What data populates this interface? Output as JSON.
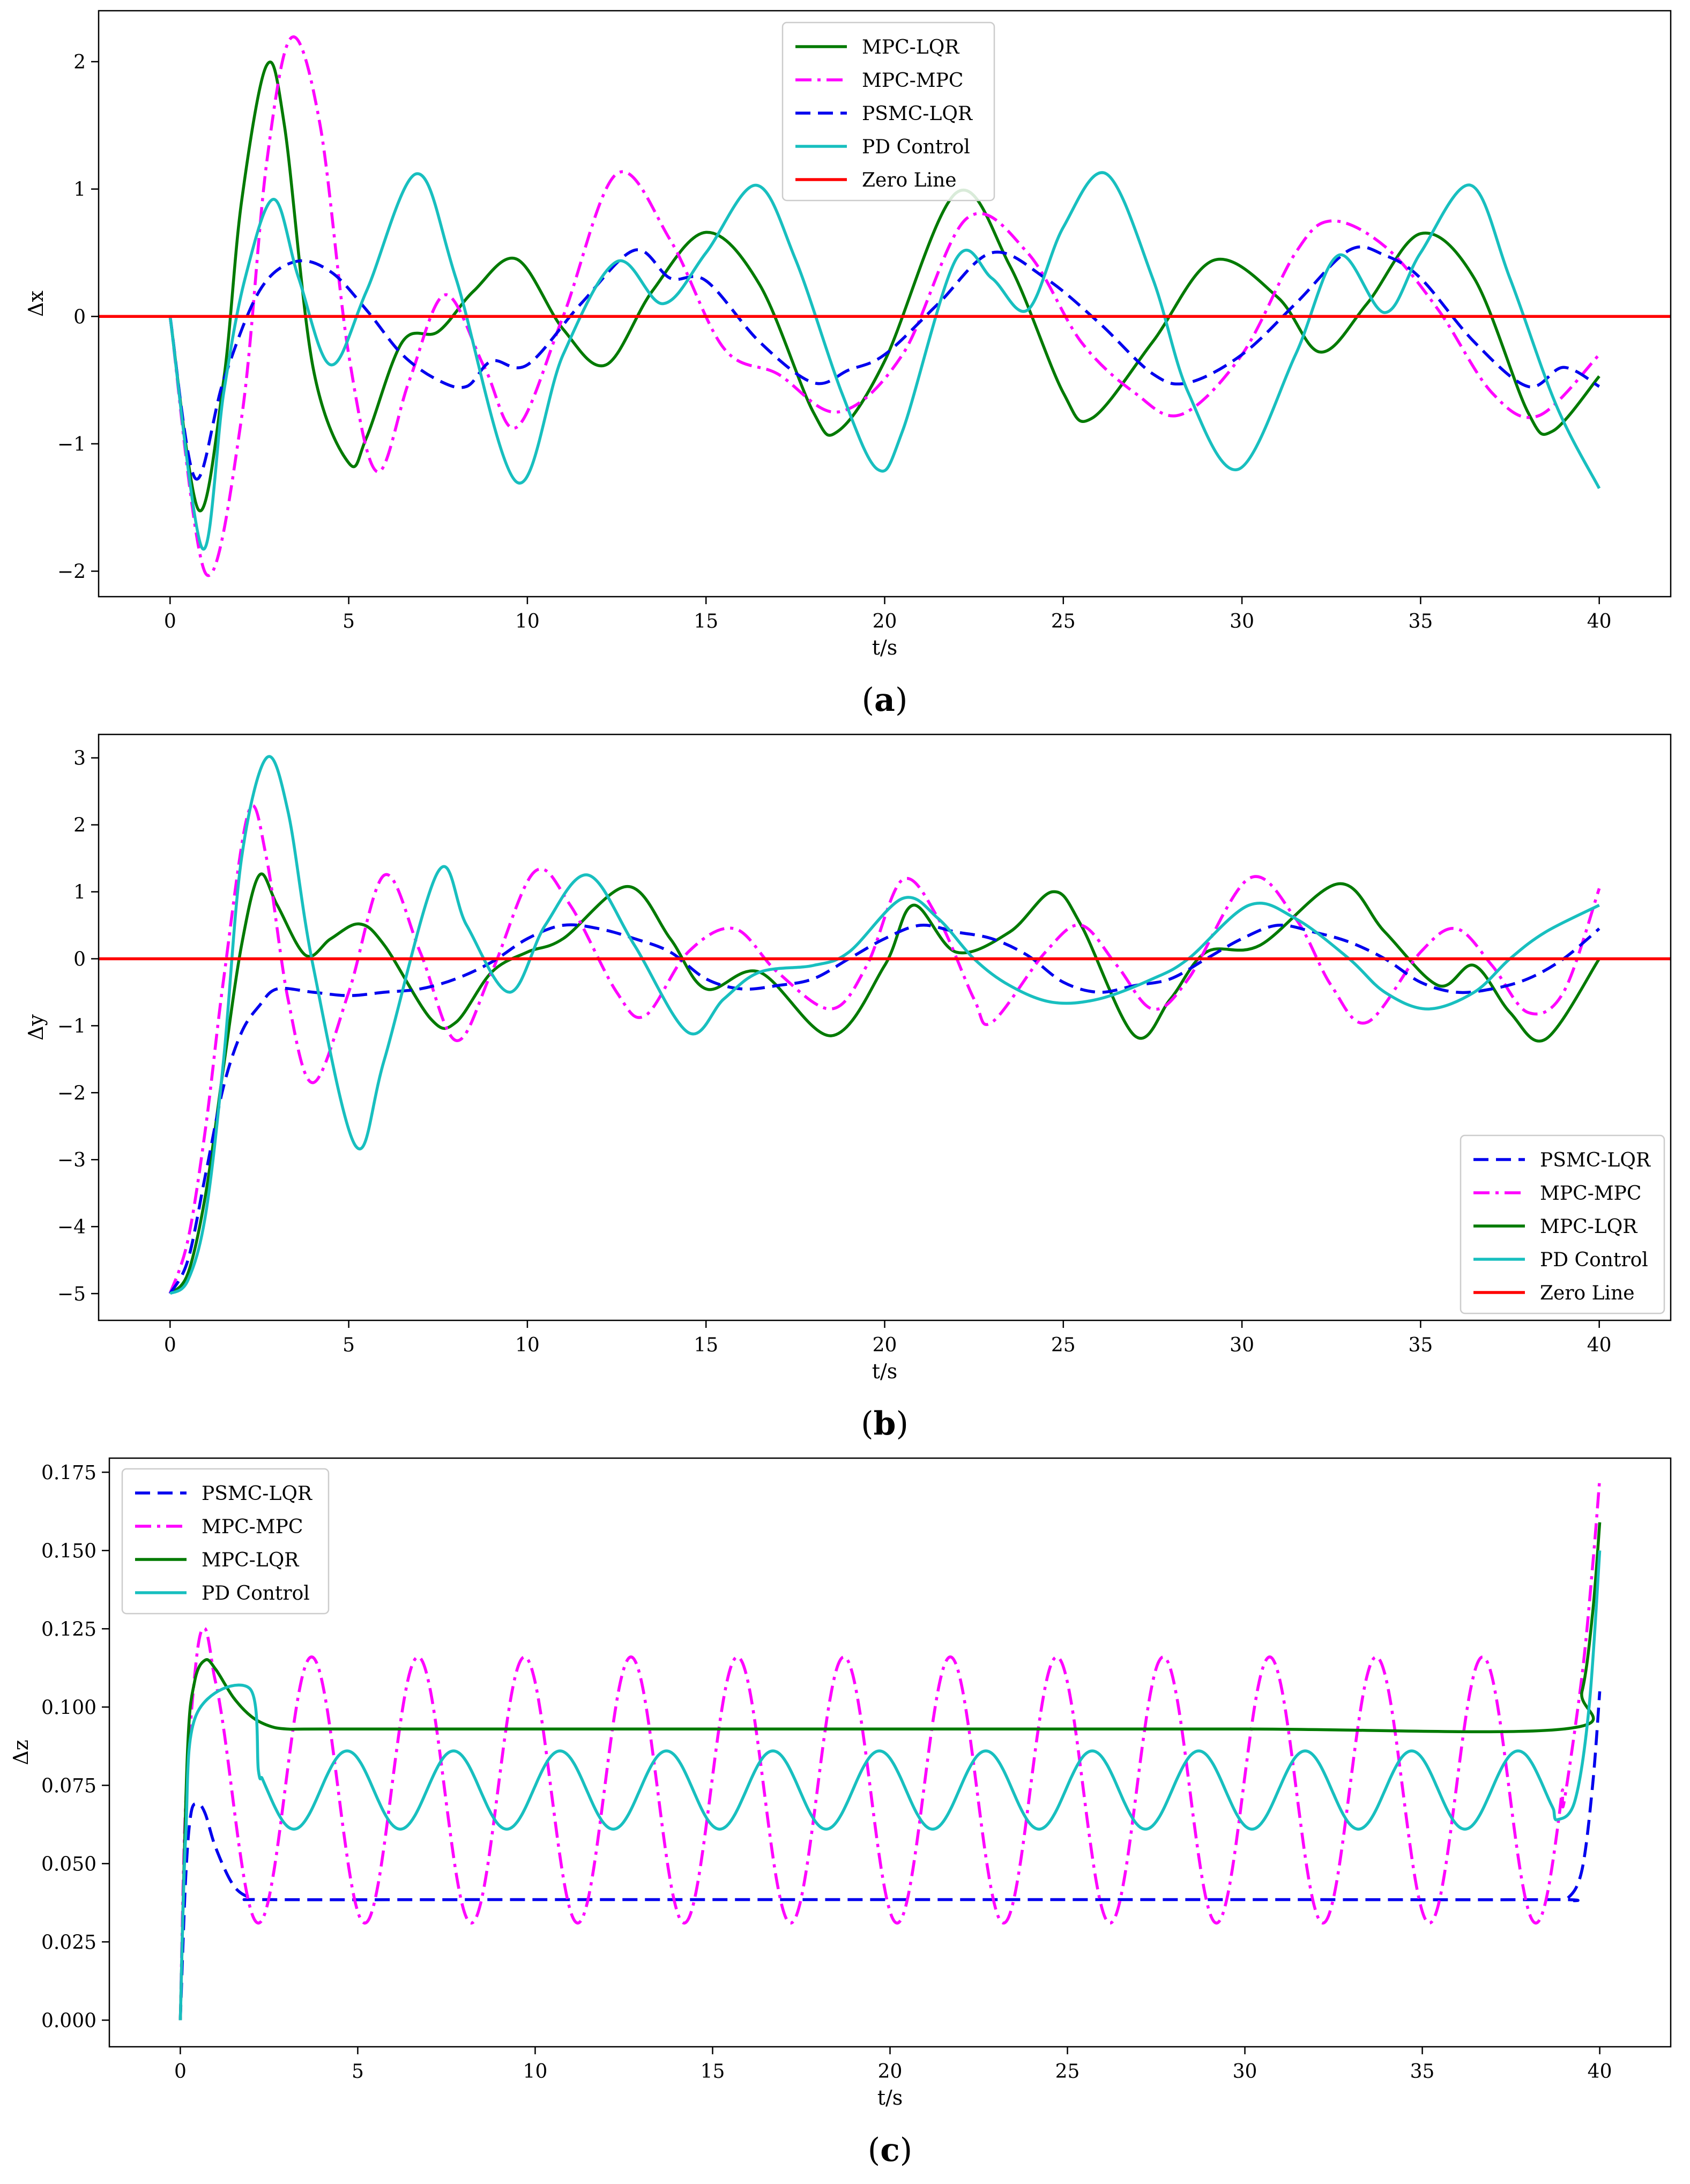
{
  "figure": {
    "colors": {
      "mpc_lqr": "#007a00",
      "mpc_mpc": "#ff00ff",
      "psmc_lqr": "#0000ee",
      "pd": "#18bfbf",
      "zero": "#ff0000",
      "axis": "#000000"
    }
  },
  "chart_data": [
    {
      "id": "a",
      "type": "line",
      "caption_letter": "a",
      "xlabel": "t/s",
      "ylabel": "Δx",
      "xlim": [
        -2,
        42
      ],
      "ylim": [
        -2.2,
        2.4
      ],
      "xticks": [
        0,
        5,
        10,
        15,
        20,
        25,
        30,
        35,
        40
      ],
      "xtick_labels": [
        "0",
        "5",
        "10",
        "15",
        "20",
        "25",
        "30",
        "35",
        "40"
      ],
      "yticks": [
        -2,
        -1,
        0,
        1,
        2
      ],
      "ytick_labels": [
        "−2",
        "−1",
        "0",
        "1",
        "2"
      ],
      "legend_position": "top-center",
      "legend_order": [
        "mpc_lqr",
        "mpc_mpc",
        "psmc_lqr",
        "pd",
        "zero"
      ],
      "series": [
        {
          "key": "mpc_lqr",
          "name": "MPC-LQR",
          "style": "solid",
          "color": "#007a00",
          "x": [
            0,
            0.8,
            1.5,
            2.0,
            2.7,
            3.2,
            4.0,
            5.0,
            5.5,
            6.5,
            7.5,
            8.5,
            9.7,
            11.0,
            12.2,
            13.5,
            15.0,
            16.5,
            18.0,
            18.7,
            20.0,
            22.0,
            23.5,
            25.0,
            25.8,
            27.5,
            29.2,
            31.0,
            32.2,
            33.5,
            35.0,
            36.5,
            38.0,
            38.7,
            40.0
          ],
          "y": [
            0,
            -1.52,
            -0.5,
            0.9,
            1.97,
            1.5,
            -0.4,
            -1.15,
            -0.95,
            -0.2,
            -0.12,
            0.2,
            0.45,
            -0.1,
            -0.38,
            0.2,
            0.66,
            0.25,
            -0.75,
            -0.9,
            -0.35,
            0.97,
            0.4,
            -0.6,
            -0.8,
            -0.2,
            0.44,
            0.15,
            -0.28,
            0.1,
            0.65,
            0.3,
            -0.75,
            -0.9,
            -0.47
          ]
        },
        {
          "key": "mpc_mpc",
          "name": "MPC-MPC",
          "style": "dashdot",
          "color": "#ff00ff",
          "x": [
            0,
            1.0,
            2.0,
            2.7,
            3.4,
            4.2,
            5.0,
            5.8,
            6.7,
            7.7,
            8.8,
            9.7,
            11.0,
            12.5,
            14.0,
            15.5,
            17.0,
            18.7,
            20.5,
            22.3,
            24.0,
            25.5,
            27.0,
            28.3,
            30.0,
            31.5,
            32.5,
            34.0,
            35.5,
            37.0,
            38.3,
            40.0
          ],
          "y": [
            0,
            -2.02,
            -0.8,
            1.2,
            2.19,
            1.5,
            -0.3,
            -1.22,
            -0.5,
            0.17,
            -0.4,
            -0.87,
            0.0,
            1.12,
            0.6,
            -0.25,
            -0.45,
            -0.75,
            -0.3,
            0.77,
            0.5,
            -0.2,
            -0.6,
            -0.77,
            -0.3,
            0.5,
            0.75,
            0.55,
            0.05,
            -0.6,
            -0.78,
            -0.3
          ]
        },
        {
          "key": "psmc_lqr",
          "name": "PSMC-LQR",
          "style": "dashed",
          "color": "#0000ee",
          "x": [
            0,
            0.7,
            1.5,
            2.5,
            3.5,
            4.5,
            5.5,
            6.5,
            7.5,
            8.3,
            9.0,
            10.0,
            11.5,
            13.0,
            14.0,
            15.0,
            16.5,
            18.0,
            19.0,
            20.0,
            21.5,
            23.0,
            24.5,
            26.0,
            27.5,
            28.5,
            30.0,
            31.5,
            33.0,
            34.0,
            35.0,
            36.5,
            38.0,
            39.0,
            40.0
          ],
          "y": [
            0,
            -1.27,
            -0.5,
            0.2,
            0.43,
            0.35,
            0.05,
            -0.3,
            -0.5,
            -0.55,
            -0.35,
            -0.38,
            0.1,
            0.52,
            0.3,
            0.28,
            -0.2,
            -0.52,
            -0.42,
            -0.3,
            0.1,
            0.5,
            0.3,
            -0.05,
            -0.45,
            -0.52,
            -0.3,
            0.1,
            0.52,
            0.48,
            0.3,
            -0.2,
            -0.55,
            -0.4,
            -0.55
          ]
        },
        {
          "key": "pd",
          "name": "PD Control",
          "style": "solid",
          "color": "#18bfbf",
          "x": [
            0,
            0.9,
            1.5,
            2.1,
            2.9,
            3.6,
            4.5,
            5.5,
            6.9,
            8.0,
            9.7,
            11.0,
            12.5,
            13.8,
            15.0,
            16.4,
            17.5,
            18.8,
            19.8,
            20.5,
            22.0,
            23.0,
            24.0,
            25.0,
            26.2,
            27.5,
            28.5,
            29.9,
            31.5,
            32.7,
            34.0,
            35.0,
            36.4,
            37.5,
            38.8,
            40.0
          ],
          "y": [
            0,
            -1.82,
            -0.6,
            0.3,
            0.92,
            0.3,
            -0.38,
            0.2,
            1.12,
            0.3,
            -1.3,
            -0.3,
            0.43,
            0.1,
            0.5,
            1.03,
            0.45,
            -0.6,
            -1.2,
            -0.9,
            0.45,
            0.3,
            0.05,
            0.7,
            1.12,
            0.3,
            -0.6,
            -1.2,
            -0.3,
            0.48,
            0.03,
            0.5,
            1.03,
            0.3,
            -0.7,
            -1.35
          ]
        },
        {
          "key": "zero",
          "name": "Zero Line",
          "style": "solid",
          "color": "#ff0000",
          "x": [
            -2,
            42
          ],
          "y": [
            0,
            0
          ]
        }
      ]
    },
    {
      "id": "b",
      "type": "line",
      "caption_letter": "b",
      "xlabel": "t/s",
      "ylabel": "Δy",
      "xlim": [
        -2,
        42
      ],
      "ylim": [
        -5.4,
        3.35
      ],
      "xticks": [
        0,
        5,
        10,
        15,
        20,
        25,
        30,
        35,
        40
      ],
      "xtick_labels": [
        "0",
        "5",
        "10",
        "15",
        "20",
        "25",
        "30",
        "35",
        "40"
      ],
      "yticks": [
        -5,
        -4,
        -3,
        -2,
        -1,
        0,
        1,
        2,
        3
      ],
      "ytick_labels": [
        "−5",
        "−4",
        "−3",
        "−2",
        "−1",
        "0",
        "1",
        "2",
        "3"
      ],
      "legend_position": "lower-right",
      "legend_order": [
        "psmc_lqr",
        "mpc_mpc",
        "mpc_lqr",
        "pd",
        "zero"
      ],
      "series": [
        {
          "key": "mpc_lqr",
          "name": "MPC-LQR",
          "style": "solid",
          "color": "#007a00",
          "x": [
            0,
            0.5,
            1.0,
            1.5,
            2.0,
            2.5,
            3.0,
            3.8,
            4.5,
            5.3,
            6.0,
            7.3,
            8.0,
            9.0,
            10.0,
            11.0,
            12.8,
            14.0,
            15.0,
            16.5,
            18.5,
            20.0,
            20.8,
            22.0,
            23.5,
            24.7,
            25.5,
            27.0,
            28.0,
            29.0,
            30.5,
            32.7,
            34.0,
            35.5,
            36.5,
            37.5,
            38.5,
            40.0
          ],
          "y": [
            -5,
            -4.7,
            -3.5,
            -1.6,
            0.2,
            1.25,
            0.8,
            0.05,
            0.3,
            0.52,
            0.2,
            -0.9,
            -0.95,
            -0.2,
            0.1,
            0.3,
            1.08,
            0.3,
            -0.45,
            -0.2,
            -1.15,
            -0.1,
            0.8,
            0.1,
            0.4,
            1.0,
            0.5,
            -1.15,
            -0.6,
            0.1,
            0.2,
            1.12,
            0.4,
            -0.4,
            -0.1,
            -0.8,
            -1.2,
            0.0
          ]
        },
        {
          "key": "mpc_mpc",
          "name": "MPC-MPC",
          "style": "dashdot",
          "color": "#ff00ff",
          "x": [
            0,
            0.5,
            1.0,
            1.5,
            2.2,
            2.7,
            3.3,
            4.0,
            5.0,
            6.0,
            7.0,
            8.0,
            9.0,
            10.2,
            11.2,
            12.5,
            13.3,
            14.5,
            15.8,
            17.0,
            18.5,
            19.5,
            20.5,
            21.5,
            22.5,
            23.0,
            24.5,
            25.5,
            26.5,
            27.5,
            28.5,
            30.2,
            31.5,
            32.5,
            33.5,
            35.0,
            36.0,
            37.0,
            38.0,
            39.0,
            40.0
          ],
          "y": [
            -5,
            -4.2,
            -2.5,
            -0.3,
            2.2,
            1.5,
            -0.6,
            -1.85,
            -0.5,
            1.25,
            0.1,
            -1.22,
            -0.2,
            1.3,
            0.8,
            -0.5,
            -0.85,
            0.1,
            0.45,
            -0.2,
            -0.75,
            -0.1,
            1.18,
            0.6,
            -0.6,
            -0.95,
            0.1,
            0.5,
            -0.1,
            -0.75,
            -0.3,
            1.2,
            0.6,
            -0.4,
            -0.95,
            0.1,
            0.45,
            -0.1,
            -0.8,
            -0.5,
            1.05
          ]
        },
        {
          "key": "psmc_lqr",
          "name": "PSMC-LQR",
          "style": "dashed",
          "color": "#0000ee",
          "x": [
            0,
            0.5,
            1.0,
            1.5,
            2.0,
            2.5,
            3.0,
            4.0,
            5.0,
            6.0,
            7.0,
            8.0,
            9.0,
            10.0,
            11.0,
            12.0,
            13.0,
            14.0,
            15.0,
            16.0,
            17.0,
            18.0,
            19.0,
            20.0,
            21.0,
            22.0,
            23.0,
            24.0,
            25.0,
            26.0,
            27.0,
            28.0,
            29.0,
            30.0,
            31.0,
            32.0,
            33.0,
            34.0,
            35.0,
            36.0,
            37.0,
            38.0,
            39.0,
            40.0
          ],
          "y": [
            -5,
            -4.5,
            -3.2,
            -1.9,
            -1.1,
            -0.7,
            -0.45,
            -0.5,
            -0.55,
            -0.5,
            -0.45,
            -0.3,
            -0.05,
            0.3,
            0.5,
            0.45,
            0.3,
            0.1,
            -0.3,
            -0.45,
            -0.4,
            -0.3,
            0.0,
            0.3,
            0.5,
            0.4,
            0.3,
            0.05,
            -0.35,
            -0.5,
            -0.4,
            -0.3,
            0.0,
            0.3,
            0.5,
            0.4,
            0.25,
            0.0,
            -0.35,
            -0.5,
            -0.45,
            -0.3,
            0.0,
            0.45
          ]
        },
        {
          "key": "pd",
          "name": "PD Control",
          "style": "solid",
          "color": "#18bfbf",
          "x": [
            0,
            0.5,
            1.0,
            1.5,
            2.0,
            2.7,
            3.3,
            4.0,
            5.2,
            6.0,
            7.5,
            8.3,
            9.5,
            10.5,
            11.7,
            13.0,
            14.5,
            15.5,
            16.5,
            18.0,
            19.0,
            20.5,
            21.5,
            22.5,
            23.5,
            24.7,
            26.0,
            27.5,
            28.5,
            30.2,
            31.5,
            33.0,
            34.0,
            35.2,
            36.5,
            37.5,
            38.5,
            40.0
          ],
          "y": [
            -5,
            -4.8,
            -3.8,
            -1.5,
            1.5,
            3.0,
            2.2,
            -0.1,
            -2.8,
            -1.5,
            1.3,
            0.5,
            -0.5,
            0.5,
            1.25,
            0.2,
            -1.1,
            -0.6,
            -0.2,
            -0.1,
            0.1,
            0.9,
            0.6,
            0.0,
            -0.4,
            -0.65,
            -0.6,
            -0.3,
            0.0,
            0.8,
            0.6,
            0.0,
            -0.5,
            -0.75,
            -0.5,
            0.0,
            0.4,
            0.8
          ]
        },
        {
          "key": "zero",
          "name": "Zero Line",
          "style": "solid",
          "color": "#ff0000",
          "x": [
            -2,
            42
          ],
          "y": [
            0,
            0
          ]
        }
      ]
    },
    {
      "id": "c",
      "type": "line",
      "caption_letter": "c",
      "xlabel": "t/s",
      "ylabel": "Δz",
      "xlim": [
        -2,
        42
      ],
      "ylim": [
        -0.0085,
        0.1795
      ],
      "xticks": [
        0,
        5,
        10,
        15,
        20,
        25,
        30,
        35,
        40
      ],
      "xtick_labels": [
        "0",
        "5",
        "10",
        "15",
        "20",
        "25",
        "30",
        "35",
        "40"
      ],
      "yticks": [
        0,
        0.025,
        0.05,
        0.075,
        0.1,
        0.125,
        0.15,
        0.175
      ],
      "ytick_labels": [
        "0.000",
        "0.025",
        "0.050",
        "0.075",
        "0.100",
        "0.125",
        "0.150",
        "0.175"
      ],
      "legend_position": "top-left",
      "legend_order": [
        "psmc_lqr",
        "mpc_mpc",
        "mpc_lqr",
        "pd"
      ],
      "series": [
        {
          "key": "psmc_lqr",
          "name": "PSMC-LQR",
          "style": "dashed",
          "color": "#0000ee",
          "x": [
            0,
            0.15,
            0.3,
            0.5,
            0.7,
            1.0,
            1.5,
            2.0,
            2.5,
            10,
            20,
            30,
            38.6,
            39.1,
            39.5,
            39.8,
            40.0
          ],
          "y": [
            0,
            0.045,
            0.066,
            0.069,
            0.066,
            0.055,
            0.043,
            0.039,
            0.0385,
            0.0385,
            0.0385,
            0.0385,
            0.0385,
            0.039,
            0.048,
            0.075,
            0.105
          ]
        },
        {
          "key": "mpc_mpc",
          "name": "MPC-MPC",
          "style": "dashdot",
          "fn": "osc",
          "color": "#ff00ff",
          "amp": 0.0425,
          "mid": 0.0735,
          "period": 3.0,
          "peak": 3.7,
          "start": 0.75,
          "peak_first": 0.125,
          "end": 39.0,
          "end_values": [
            [
              39.0,
              0.07
            ],
            [
              39.5,
              0.11
            ],
            [
              39.8,
              0.145
            ],
            [
              40.0,
              0.173
            ]
          ]
        },
        {
          "key": "mpc_lqr",
          "name": "MPC-LQR",
          "style": "solid",
          "color": "#007a00",
          "x": [
            0,
            0.2,
            0.4,
            0.7,
            1.0,
            1.5,
            2.0,
            2.5,
            3.0,
            4.0,
            10,
            20,
            30,
            39.0,
            39.5,
            39.8,
            40.0
          ],
          "y": [
            0,
            0.085,
            0.108,
            0.115,
            0.112,
            0.103,
            0.097,
            0.094,
            0.093,
            0.093,
            0.093,
            0.093,
            0.093,
            0.093,
            0.105,
            0.13,
            0.159
          ]
        },
        {
          "key": "pd",
          "name": "PD Control",
          "style": "solid",
          "fn": "osc",
          "color": "#18bfbf",
          "amp": 0.0125,
          "mid": 0.0735,
          "period": 3.0,
          "peak": 4.7,
          "start": 2.0,
          "peak_first": 0.106,
          "end": 38.8,
          "end_values": [
            [
              38.8,
              0.064
            ],
            [
              39.3,
              0.07
            ],
            [
              39.7,
              0.1
            ],
            [
              40.0,
              0.15
            ]
          ]
        }
      ]
    }
  ]
}
